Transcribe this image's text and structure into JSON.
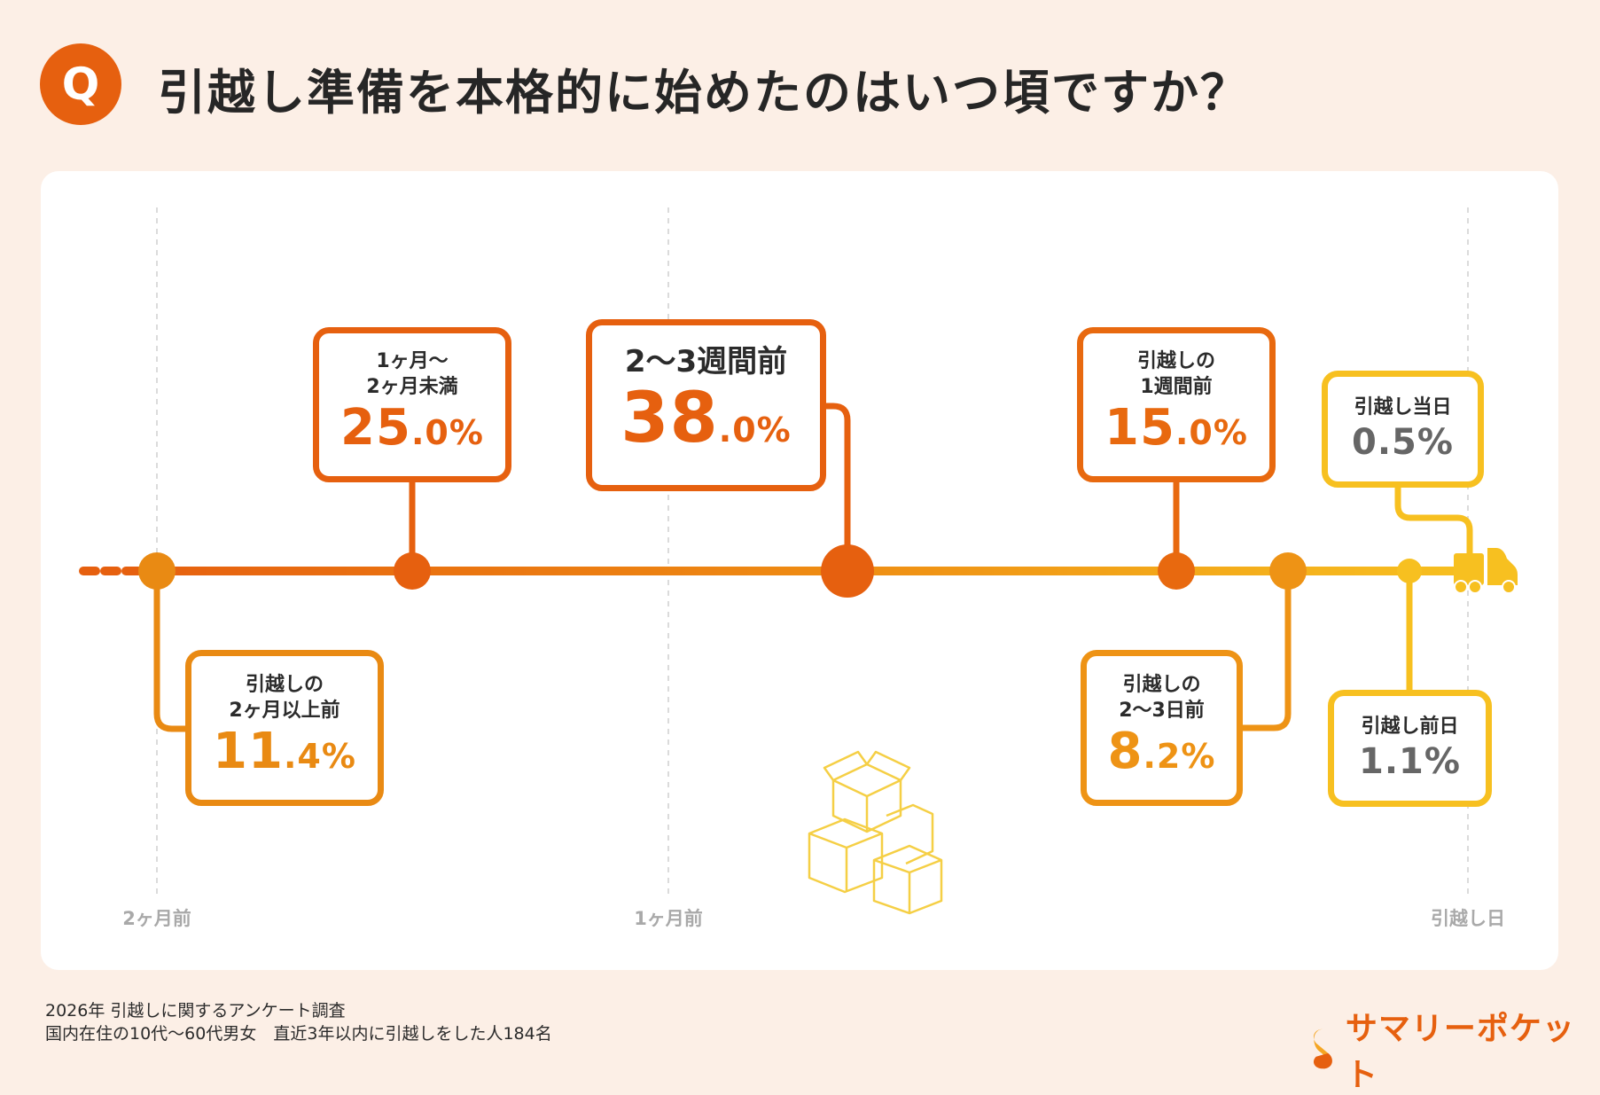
{
  "header": {
    "badge": "Q",
    "title": "引越し準備を本格的に始めたのはいつ頃ですか？"
  },
  "axis": {
    "labels": [
      "2ヶ月前",
      "1ヶ月前",
      "引越し日"
    ]
  },
  "items": [
    {
      "label": "引越しの\n2ヶ月以上前",
      "value": "11.4%",
      "color": "#e98a13"
    },
    {
      "label": "1ヶ月〜\n2ヶ月未満",
      "value": "25.0%",
      "color": "#e6600f"
    },
    {
      "label": "2〜3週間前",
      "value": "38.0%",
      "color": "#e6600f"
    },
    {
      "label": "引越しの\n1週間前",
      "value": "15.0%",
      "color": "#e8690f"
    },
    {
      "label": "引越しの\n2〜3日前",
      "value": "8.2%",
      "color": "#ee9315"
    },
    {
      "label": "引越し当日",
      "value": "0.5%",
      "color": "#f7c020"
    },
    {
      "label": "引越し前日",
      "value": "1.1%",
      "color": "#f7c020"
    }
  ],
  "footer": {
    "line1": "2026年  引越しに関するアンケート調査",
    "line2": "国内在住の10代〜60代男女　直近3年以内に引越しをした人184名",
    "logo": "サマリーポケット"
  },
  "colors": {
    "background": "#fcefe6",
    "accent": "#e6600f",
    "yellow": "#f7c020"
  }
}
